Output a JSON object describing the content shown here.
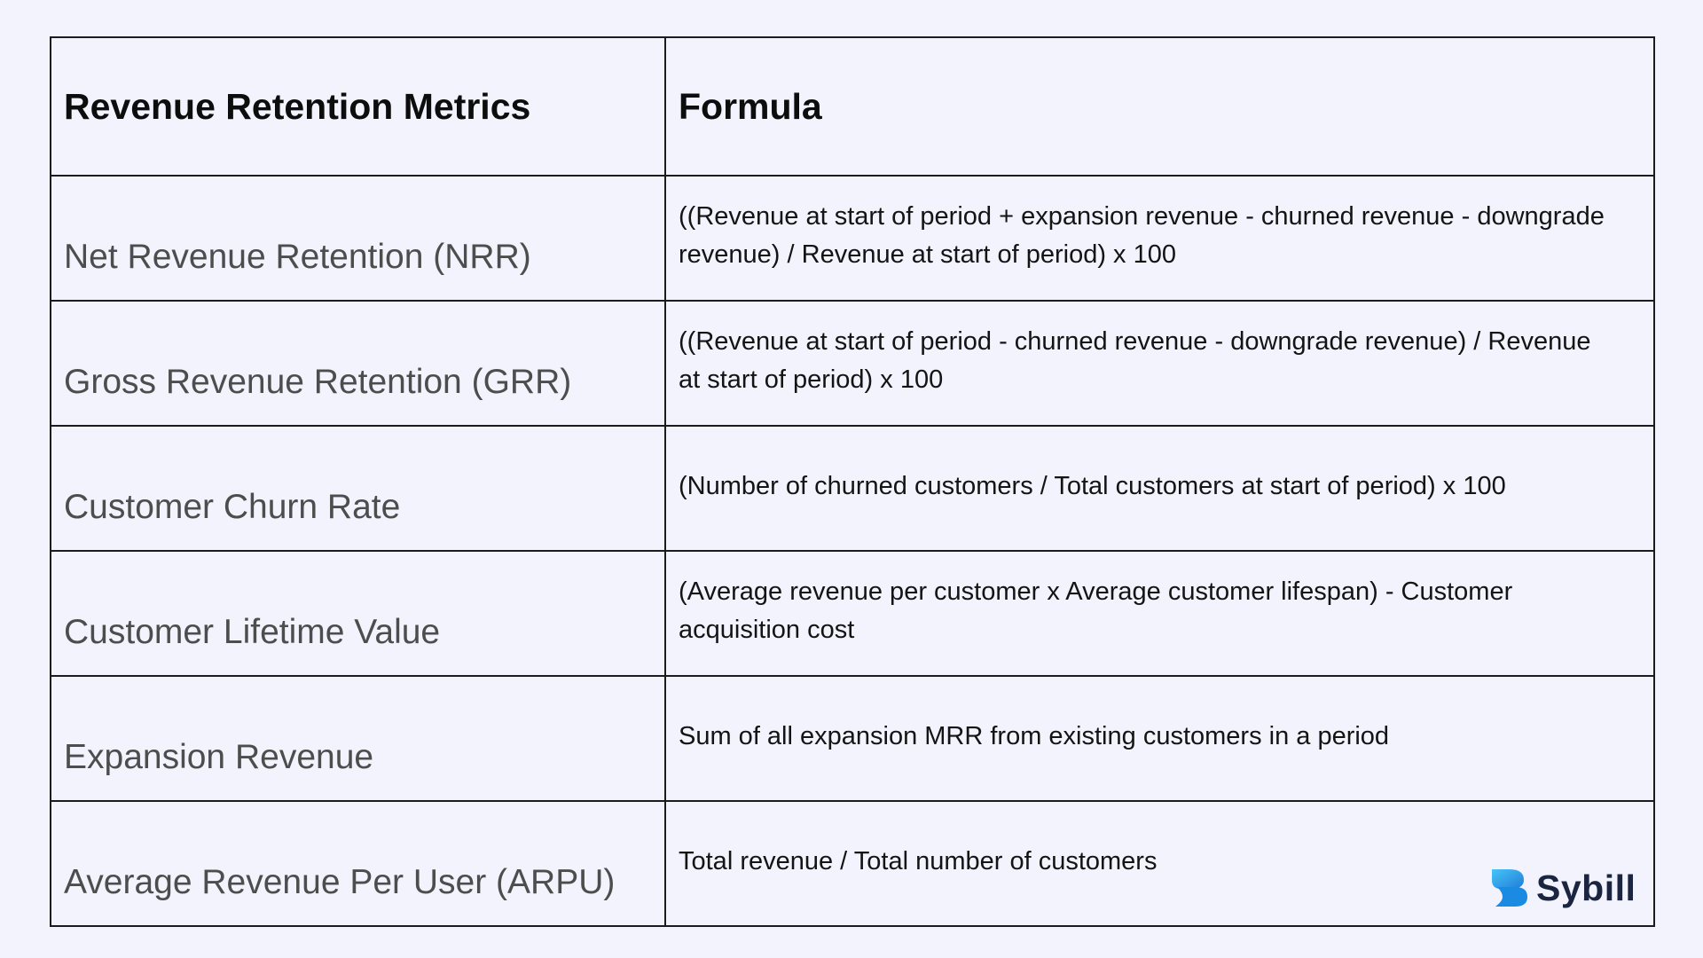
{
  "table": {
    "headers": [
      "Revenue Retention Metrics",
      "Formula"
    ],
    "rows": [
      {
        "metric": "Net Revenue Retention (NRR)",
        "formula": "((Revenue at start of period + expansion revenue - churned revenue - downgrade revenue) / Revenue at start of period) x 100"
      },
      {
        "metric": "Gross Revenue Retention (GRR)",
        "formula": "((Revenue at start of period - churned revenue - downgrade revenue) / Revenue at start of period) x 100"
      },
      {
        "metric": "Customer Churn Rate",
        "formula": "(Number of churned customers / Total customers at start of period) x 100"
      },
      {
        "metric": "Customer Lifetime Value",
        "formula": "(Average revenue per customer x Average customer lifespan) - Customer acquisition cost"
      },
      {
        "metric": "Expansion Revenue",
        "formula": "Sum of all expansion MRR from existing customers in a period"
      },
      {
        "metric": "Average Revenue Per User (ARPU)",
        "formula": "Total revenue / Total number of customers"
      }
    ]
  },
  "brand": {
    "name": "Sybill",
    "icon": "sybill-logo-icon",
    "logo_colors": [
      "#2aa7ee",
      "#1577d6"
    ],
    "text_color": "#1c2540"
  },
  "colors": {
    "background": "#f2f3fd",
    "border": "#1b1b1b",
    "metric_text": "#4d4d4d"
  }
}
